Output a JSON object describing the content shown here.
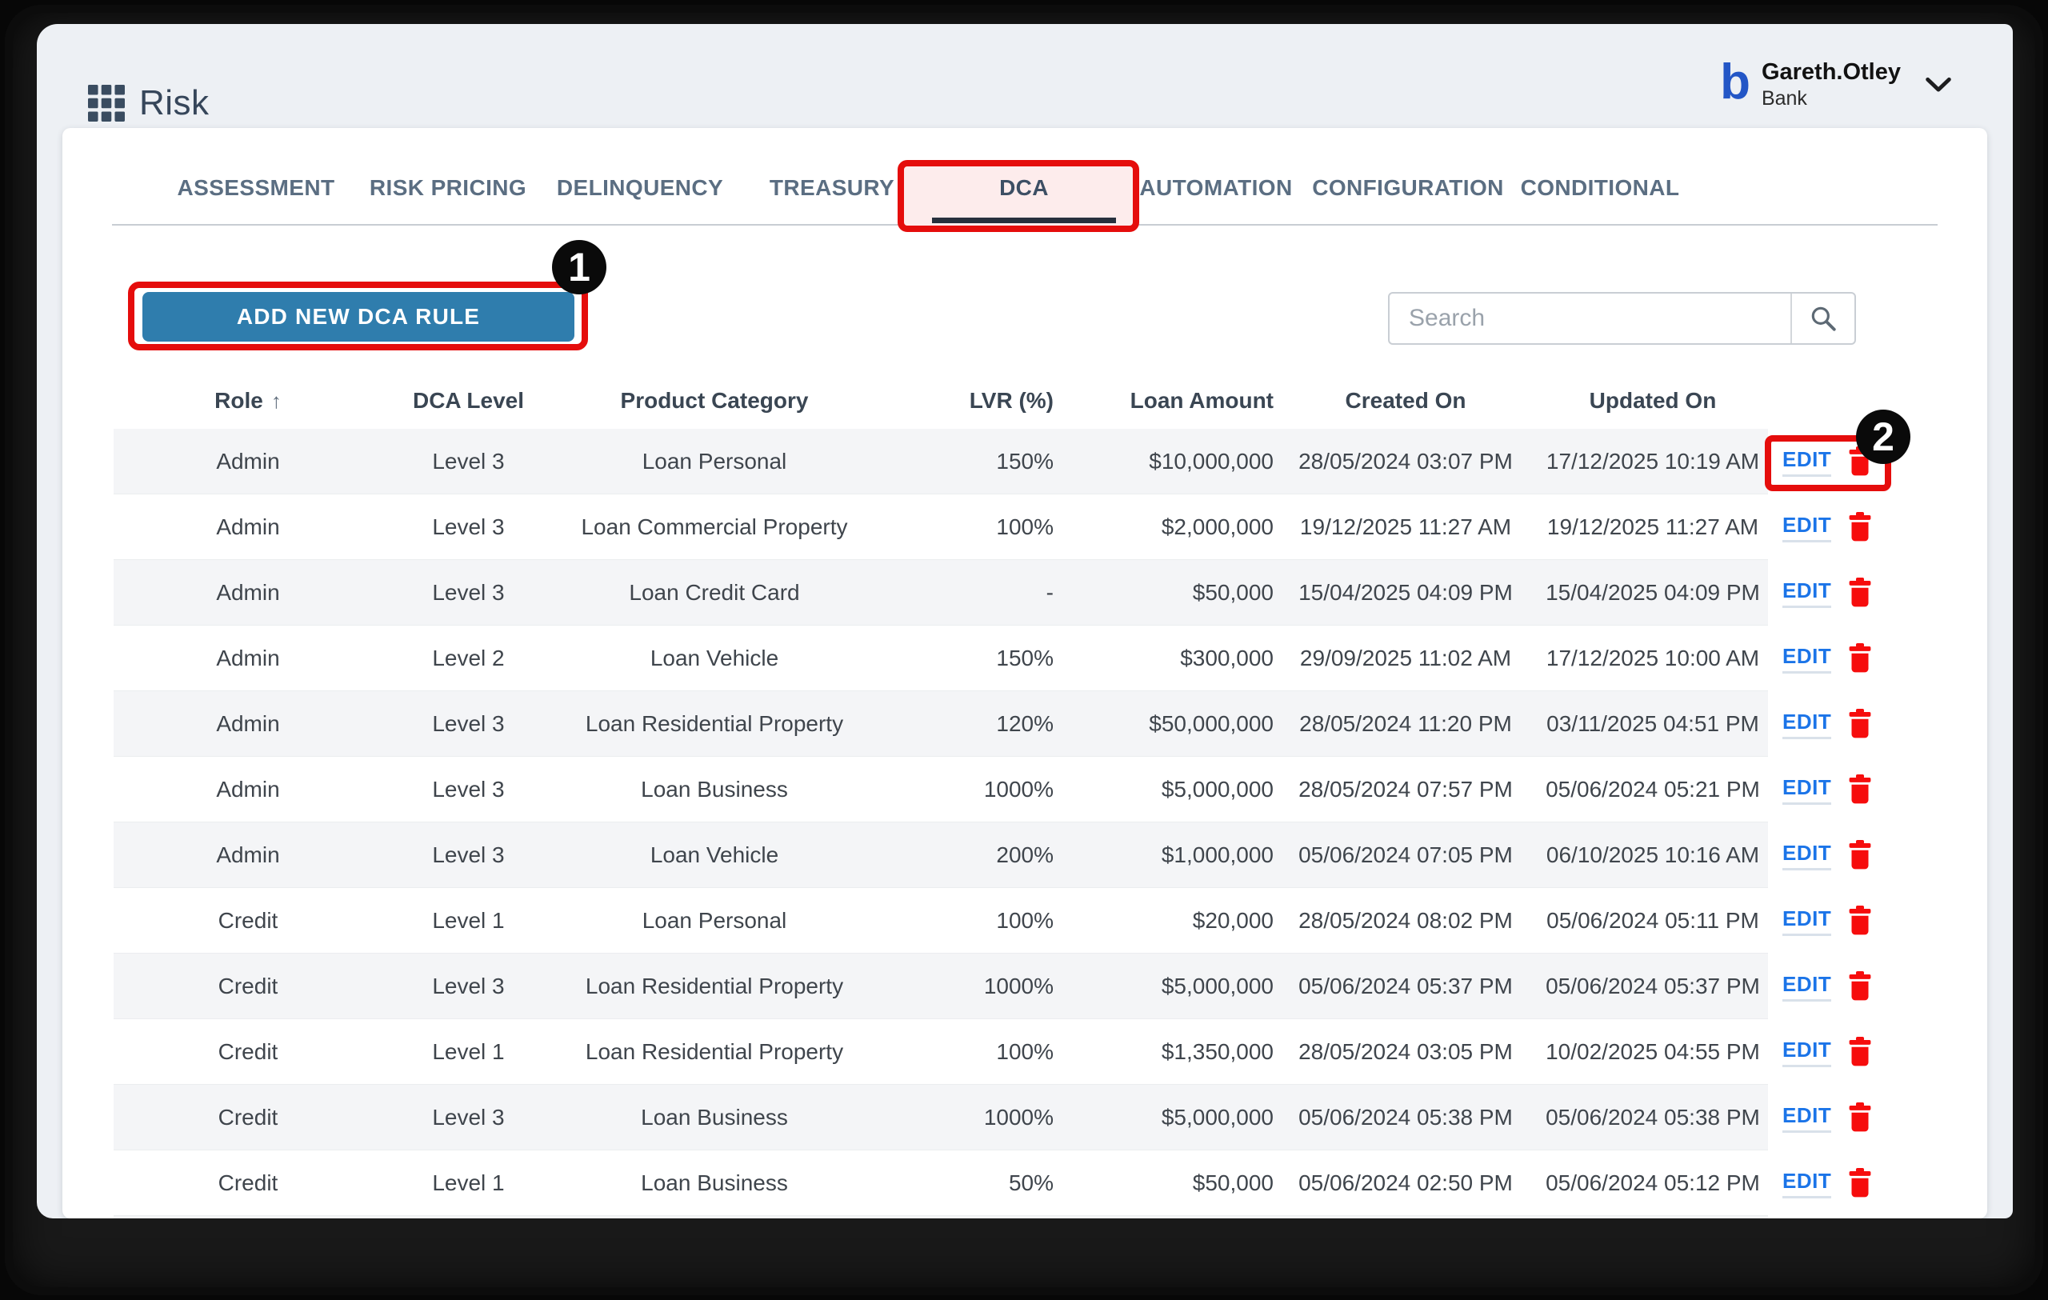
{
  "header": {
    "app_title": "Risk",
    "user": {
      "logo_letter": "b",
      "name": "Gareth.Otley",
      "org": "Bank"
    }
  },
  "tabs": [
    {
      "label": "ASSESSMENT",
      "active": false
    },
    {
      "label": "RISK PRICING",
      "active": false
    },
    {
      "label": "DELINQUENCY",
      "active": false
    },
    {
      "label": "TREASURY",
      "active": false
    },
    {
      "label": "DCA",
      "active": true
    },
    {
      "label": "AUTOMATION",
      "active": false
    },
    {
      "label": "CONFIGURATION",
      "active": false
    },
    {
      "label": "CONDITIONAL",
      "active": false
    }
  ],
  "toolbar": {
    "add_rule_button": "ADD NEW DCA RULE",
    "search_placeholder": "Search"
  },
  "annotations": {
    "badge1": "1",
    "badge2": "2"
  },
  "table": {
    "columns": [
      "Role",
      "DCA Level",
      "Product Category",
      "LVR (%)",
      "Loan Amount",
      "Created On",
      "Updated On"
    ],
    "sort_arrow": "↑",
    "edit_label": "EDIT",
    "rows": [
      {
        "role": "Admin",
        "dca_level": "Level 3",
        "product_category": "Loan Personal",
        "lvr": "150%",
        "loan_amount": "$10,000,000",
        "created_on": "28/05/2024 03:07 PM",
        "updated_on": "17/12/2025 10:19 AM"
      },
      {
        "role": "Admin",
        "dca_level": "Level 3",
        "product_category": "Loan Commercial Property",
        "lvr": "100%",
        "loan_amount": "$2,000,000",
        "created_on": "19/12/2025 11:27 AM",
        "updated_on": "19/12/2025 11:27 AM"
      },
      {
        "role": "Admin",
        "dca_level": "Level 3",
        "product_category": "Loan Credit Card",
        "lvr": "-",
        "loan_amount": "$50,000",
        "created_on": "15/04/2025 04:09 PM",
        "updated_on": "15/04/2025 04:09 PM"
      },
      {
        "role": "Admin",
        "dca_level": "Level 2",
        "product_category": "Loan Vehicle",
        "lvr": "150%",
        "loan_amount": "$300,000",
        "created_on": "29/09/2025 11:02 AM",
        "updated_on": "17/12/2025 10:00 AM"
      },
      {
        "role": "Admin",
        "dca_level": "Level 3",
        "product_category": "Loan Residential Property",
        "lvr": "120%",
        "loan_amount": "$50,000,000",
        "created_on": "28/05/2024 11:20 PM",
        "updated_on": "03/11/2025 04:51 PM"
      },
      {
        "role": "Admin",
        "dca_level": "Level 3",
        "product_category": "Loan Business",
        "lvr": "1000%",
        "loan_amount": "$5,000,000",
        "created_on": "28/05/2024 07:57 PM",
        "updated_on": "05/06/2024 05:21 PM"
      },
      {
        "role": "Admin",
        "dca_level": "Level 3",
        "product_category": "Loan Vehicle",
        "lvr": "200%",
        "loan_amount": "$1,000,000",
        "created_on": "05/06/2024 07:05 PM",
        "updated_on": "06/10/2025 10:16 AM"
      },
      {
        "role": "Credit",
        "dca_level": "Level 1",
        "product_category": "Loan Personal",
        "lvr": "100%",
        "loan_amount": "$20,000",
        "created_on": "28/05/2024 08:02 PM",
        "updated_on": "05/06/2024 05:11 PM"
      },
      {
        "role": "Credit",
        "dca_level": "Level 3",
        "product_category": "Loan Residential Property",
        "lvr": "1000%",
        "loan_amount": "$5,000,000",
        "created_on": "05/06/2024 05:37 PM",
        "updated_on": "05/06/2024 05:37 PM"
      },
      {
        "role": "Credit",
        "dca_level": "Level 1",
        "product_category": "Loan Residential Property",
        "lvr": "100%",
        "loan_amount": "$1,350,000",
        "created_on": "28/05/2024 03:05 PM",
        "updated_on": "10/02/2025 04:55 PM"
      },
      {
        "role": "Credit",
        "dca_level": "Level 3",
        "product_category": "Loan Business",
        "lvr": "1000%",
        "loan_amount": "$5,000,000",
        "created_on": "05/06/2024 05:38 PM",
        "updated_on": "05/06/2024 05:38 PM"
      },
      {
        "role": "Credit",
        "dca_level": "Level 1",
        "product_category": "Loan Business",
        "lvr": "50%",
        "loan_amount": "$50,000",
        "created_on": "05/06/2024 02:50 PM",
        "updated_on": "05/06/2024 05:12 PM"
      }
    ]
  },
  "colors": {
    "primary_button": "#2f7dad",
    "annotation_red": "#e50d0c",
    "edit_link": "#1b74e8",
    "delete_icon": "#f60d0d",
    "active_tab_indicator": "#27303d"
  }
}
